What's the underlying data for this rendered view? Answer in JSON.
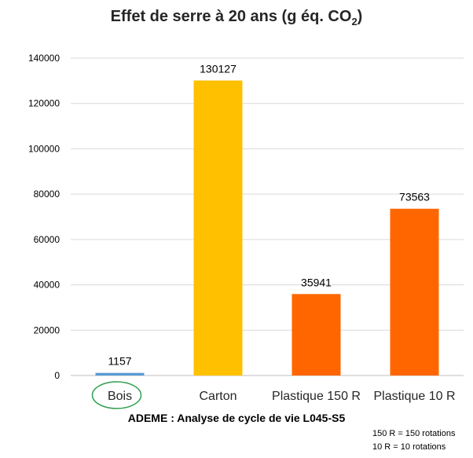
{
  "chart_data": {
    "type": "bar",
    "title_main": "Effet de serre à 20 ans (g éq. CO",
    "title_sub": "2",
    "title_end": ")",
    "categories": [
      "Bois",
      "Carton",
      "Plastique 150 R",
      "Plastique 10 R"
    ],
    "values": [
      1157,
      130127,
      35941,
      73563
    ],
    "colors": [
      "#5B9BD5",
      "#FFC000",
      "#FF6600",
      "#FF6600"
    ],
    "highlight_category": "Bois",
    "highlight_color": "#2E9E4F",
    "ylim": [
      0,
      140000
    ],
    "yticks": [
      0,
      20000,
      40000,
      60000,
      80000,
      100000,
      120000,
      140000
    ],
    "grid": true,
    "xlabel": "",
    "ylabel": ""
  },
  "source": "ADEME : Analyse de cycle de vie L045-S5",
  "notes": [
    "150 R = 150 rotations",
    "10 R = 10 rotations"
  ]
}
